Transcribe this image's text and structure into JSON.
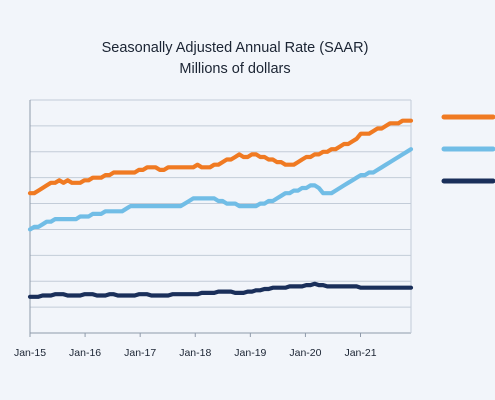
{
  "chart_data": {
    "type": "line",
    "title": "Seasonally Adjusted Annual Rate (SAAR)",
    "subtitle": "Millions of dollars",
    "xlabel": "",
    "ylabel": "",
    "x_ticks": [
      "Jan-15",
      "Jan-16",
      "Jan-17",
      "Jan-18",
      "Jan-19",
      "Jan-20",
      "Jan-21"
    ],
    "x_range": [
      0,
      83
    ],
    "ylim": [
      0,
      900
    ],
    "y_step": 100,
    "grid": true,
    "legend": "right",
    "series": [
      {
        "color": "#f07a22",
        "values": [
          540,
          540,
          550,
          560,
          570,
          580,
          580,
          590,
          580,
          590,
          580,
          580,
          580,
          590,
          590,
          600,
          600,
          600,
          610,
          610,
          620,
          620,
          620,
          620,
          620,
          620,
          630,
          630,
          640,
          640,
          640,
          630,
          630,
          640,
          640,
          640,
          640,
          640,
          640,
          640,
          650,
          640,
          640,
          640,
          650,
          650,
          660,
          670,
          670,
          680,
          690,
          680,
          680,
          690,
          690,
          680,
          680,
          670,
          670,
          660,
          660,
          650,
          650,
          650,
          660,
          670,
          680,
          680,
          690,
          690,
          700,
          700,
          710,
          710,
          720,
          730,
          730,
          740,
          750,
          770,
          770,
          770,
          780,
          790,
          790,
          800,
          810,
          810,
          810,
          820,
          820,
          820
        ]
      },
      {
        "color": "#71bde6",
        "values": [
          400,
          410,
          410,
          420,
          430,
          430,
          440,
          440,
          440,
          440,
          440,
          440,
          450,
          450,
          450,
          460,
          460,
          460,
          470,
          470,
          470,
          470,
          470,
          480,
          490,
          490,
          490,
          490,
          490,
          490,
          490,
          490,
          490,
          490,
          490,
          490,
          490,
          500,
          510,
          520,
          520,
          520,
          520,
          520,
          520,
          510,
          510,
          500,
          500,
          500,
          490,
          490,
          490,
          490,
          490,
          500,
          500,
          510,
          510,
          520,
          530,
          540,
          540,
          550,
          550,
          560,
          560,
          570,
          570,
          560,
          540,
          540,
          540,
          550,
          560,
          570,
          580,
          590,
          600,
          610,
          610,
          620,
          620,
          630,
          640,
          650,
          660,
          670,
          680,
          690,
          700,
          710
        ]
      },
      {
        "color": "#1a2f5a",
        "values": [
          140,
          140,
          140,
          145,
          145,
          145,
          150,
          150,
          150,
          145,
          145,
          145,
          145,
          150,
          150,
          150,
          145,
          145,
          145,
          150,
          150,
          145,
          145,
          145,
          145,
          145,
          150,
          150,
          150,
          145,
          145,
          145,
          145,
          145,
          150,
          150,
          150,
          150,
          150,
          150,
          150,
          155,
          155,
          155,
          155,
          160,
          160,
          160,
          160,
          155,
          155,
          155,
          160,
          160,
          165,
          165,
          170,
          170,
          175,
          175,
          175,
          175,
          180,
          180,
          180,
          180,
          185,
          185,
          190,
          185,
          185,
          180,
          180,
          180,
          180,
          180,
          180,
          180,
          180,
          175,
          175,
          175,
          175,
          175,
          175,
          175,
          175,
          175,
          175,
          175,
          175,
          175
        ]
      }
    ]
  }
}
